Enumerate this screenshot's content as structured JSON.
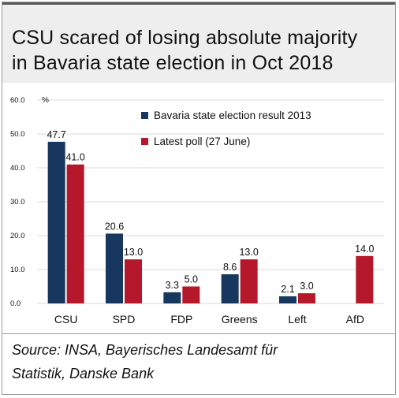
{
  "title": {
    "line1": "CSU scared of losing absolute majority",
    "line2": "in Bavaria state election in Oct 2018"
  },
  "source": {
    "line1": "Source: INSA, Bayerisches Landesamt für",
    "line2": "Statistik, Danske Bank"
  },
  "colors": {
    "series_2013": "#17375e",
    "series_poll": "#b4182a",
    "grid": "#d9d9d9"
  },
  "chart_data": {
    "type": "bar",
    "title": "CSU scared of losing absolute majority in Bavaria state election in Oct 2018",
    "xlabel": "",
    "ylabel": "%",
    "ylim": [
      0,
      60
    ],
    "yticks": [
      "0.0",
      "10.0",
      "20.0",
      "30.0",
      "40.0",
      "50.0",
      "60.0"
    ],
    "grid": true,
    "legend": "top-right",
    "categories": [
      "CSU",
      "SPD",
      "FDP",
      "Greens",
      "Left",
      "AfD"
    ],
    "series": [
      {
        "name": "Bavaria state election result 2013",
        "color": "#17375e",
        "values": [
          47.7,
          20.6,
          3.3,
          8.6,
          2.1,
          null
        ],
        "labels": [
          "47.7",
          "20.6",
          "3.3",
          "8.6",
          "2.1",
          ""
        ]
      },
      {
        "name": "Latest poll (27 June)",
        "color": "#b4182a",
        "values": [
          41.0,
          13.0,
          5.0,
          13.0,
          3.0,
          14.0
        ],
        "labels": [
          "41.0",
          "13.0",
          "5.0",
          "13.0",
          "3.0",
          "14.0"
        ]
      }
    ]
  }
}
